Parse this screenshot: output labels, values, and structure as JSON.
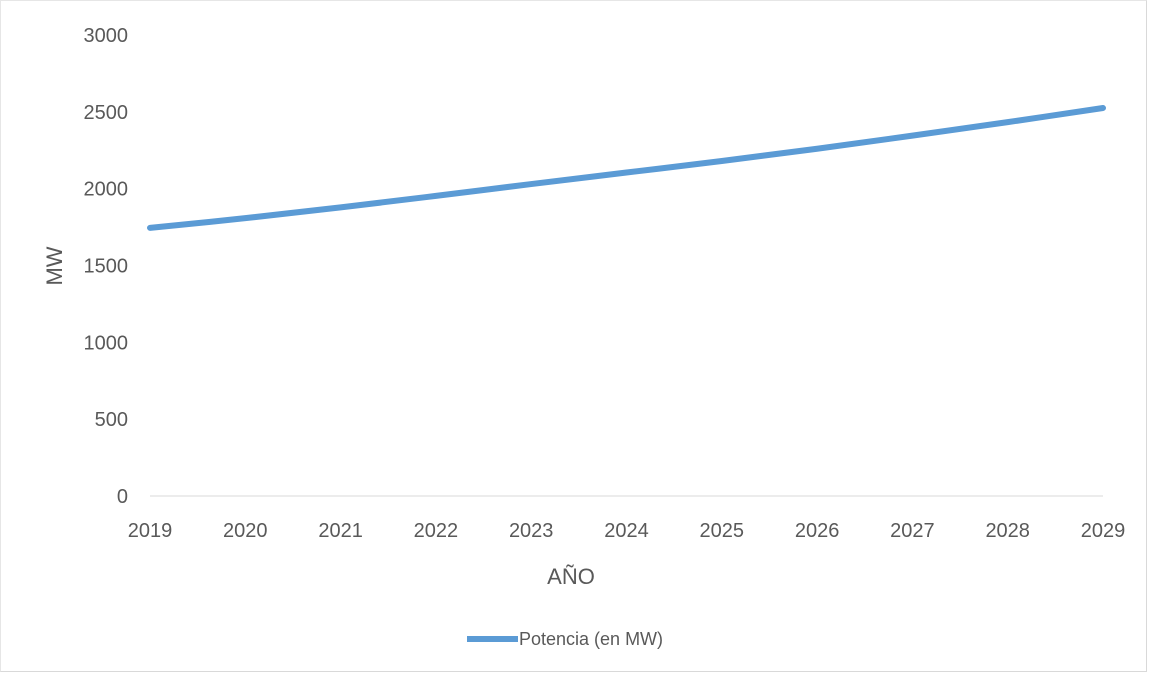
{
  "chart_data": {
    "type": "line",
    "title": "",
    "xlabel": "AÑO",
    "ylabel": "MW",
    "x": [
      "2019",
      "2020",
      "2021",
      "2022",
      "2023",
      "2024",
      "2025",
      "2026",
      "2027",
      "2028",
      "2029"
    ],
    "y_ticks": [
      "0",
      "500",
      "1000",
      "1500",
      "2000",
      "2500",
      "3000"
    ],
    "ylim": [
      0,
      3000
    ],
    "grid": false,
    "legend_position": "bottom",
    "series": [
      {
        "name": "Potencia (en MW)",
        "color": "#5b9bd5",
        "values": [
          1745,
          1808,
          1878,
          1953,
          2030,
          2105,
          2180,
          2260,
          2345,
          2433,
          2525
        ]
      }
    ]
  }
}
